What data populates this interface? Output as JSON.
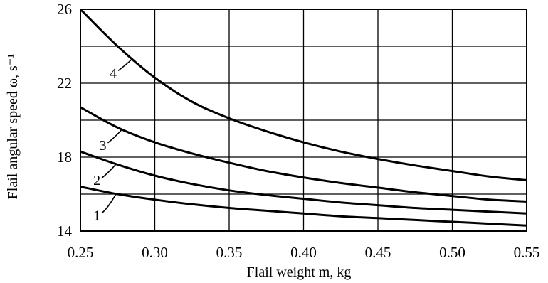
{
  "chart_data": {
    "type": "line",
    "title": "",
    "xlabel": "Flail weight m, kg",
    "ylabel": "Flail angular speed ω, s⁻¹",
    "xlim": [
      0.25,
      0.55
    ],
    "ylim": [
      14,
      26
    ],
    "xticks": [
      "0.25",
      "0.30",
      "0.35",
      "0.40",
      "0.45",
      "0.50",
      "0.55"
    ],
    "yticks": [
      "14",
      "18",
      "22",
      "26"
    ],
    "grid": true,
    "series": [
      {
        "name": "1",
        "x": [
          0.25,
          0.275,
          0.3,
          0.325,
          0.35,
          0.375,
          0.4,
          0.425,
          0.45,
          0.475,
          0.5,
          0.525,
          0.55
        ],
        "y": [
          16.4,
          16.0,
          15.7,
          15.45,
          15.25,
          15.1,
          14.95,
          14.8,
          14.7,
          14.6,
          14.5,
          14.4,
          14.3
        ],
        "label_at": [
          0.262,
          14.9
        ]
      },
      {
        "name": "2",
        "x": [
          0.25,
          0.275,
          0.3,
          0.325,
          0.35,
          0.375,
          0.4,
          0.425,
          0.45,
          0.475,
          0.5,
          0.525,
          0.55
        ],
        "y": [
          18.3,
          17.6,
          17.0,
          16.55,
          16.2,
          15.95,
          15.75,
          15.55,
          15.4,
          15.25,
          15.15,
          15.05,
          14.95
        ],
        "label_at": [
          0.262,
          16.8
        ]
      },
      {
        "name": "3",
        "x": [
          0.25,
          0.275,
          0.3,
          0.325,
          0.35,
          0.375,
          0.4,
          0.425,
          0.45,
          0.475,
          0.5,
          0.525,
          0.55
        ],
        "y": [
          20.7,
          19.6,
          18.8,
          18.2,
          17.7,
          17.25,
          16.9,
          16.6,
          16.35,
          16.1,
          15.9,
          15.7,
          15.6
        ],
        "label_at": [
          0.266,
          18.7
        ]
      },
      {
        "name": "4",
        "x": [
          0.25,
          0.275,
          0.3,
          0.325,
          0.35,
          0.375,
          0.4,
          0.425,
          0.45,
          0.475,
          0.5,
          0.525,
          0.55
        ],
        "y": [
          26.0,
          24.0,
          22.3,
          21.0,
          20.1,
          19.4,
          18.8,
          18.3,
          17.9,
          17.55,
          17.25,
          16.95,
          16.75
        ],
        "label_at": [
          0.273,
          22.6
        ]
      }
    ]
  }
}
